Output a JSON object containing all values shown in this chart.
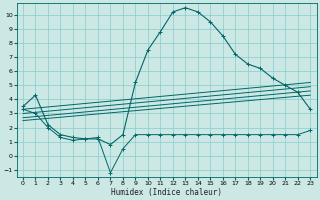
{
  "xlabel": "Humidex (Indice chaleur)",
  "bg_color": "#cce8e4",
  "grid_color": "#88cccc",
  "line_color": "#006666",
  "xlim": [
    -0.5,
    23.5
  ],
  "ylim": [
    -1.5,
    10.8
  ],
  "yticks": [
    -1,
    0,
    1,
    2,
    3,
    4,
    5,
    6,
    7,
    8,
    9,
    10
  ],
  "xticks": [
    0,
    1,
    2,
    3,
    4,
    5,
    6,
    7,
    8,
    9,
    10,
    11,
    12,
    13,
    14,
    15,
    16,
    17,
    18,
    19,
    20,
    21,
    22,
    23
  ],
  "main_x": [
    0,
    1,
    2,
    3,
    4,
    5,
    6,
    7,
    8,
    9,
    10,
    11,
    12,
    13,
    14,
    15,
    16,
    17,
    18,
    19,
    20,
    21,
    22,
    23
  ],
  "main_y": [
    3.5,
    4.3,
    2.2,
    1.5,
    1.3,
    1.2,
    1.2,
    0.8,
    1.5,
    5.2,
    7.5,
    8.8,
    10.2,
    10.5,
    10.2,
    9.5,
    8.5,
    7.2,
    6.5,
    6.2,
    5.5,
    5.0,
    4.5,
    3.3
  ],
  "lower_x": [
    0,
    1,
    2,
    3,
    4,
    5,
    6,
    7,
    8,
    9,
    10,
    11,
    12,
    13,
    14,
    15,
    16,
    17,
    18,
    19,
    20,
    21,
    22,
    23
  ],
  "lower_y": [
    3.3,
    3.0,
    2.0,
    1.3,
    1.1,
    1.2,
    1.3,
    -1.2,
    0.5,
    1.5,
    1.5,
    1.5,
    1.5,
    1.5,
    1.5,
    1.5,
    1.5,
    1.5,
    1.5,
    1.5,
    1.5,
    1.5,
    1.5,
    1.8
  ],
  "diag_lines": [
    {
      "x": [
        0,
        23
      ],
      "y": [
        3.3,
        5.2
      ]
    },
    {
      "x": [
        0,
        23
      ],
      "y": [
        3.0,
        4.9
      ]
    },
    {
      "x": [
        0,
        23
      ],
      "y": [
        2.7,
        4.6
      ]
    },
    {
      "x": [
        0,
        23
      ],
      "y": [
        2.5,
        4.3
      ]
    }
  ]
}
